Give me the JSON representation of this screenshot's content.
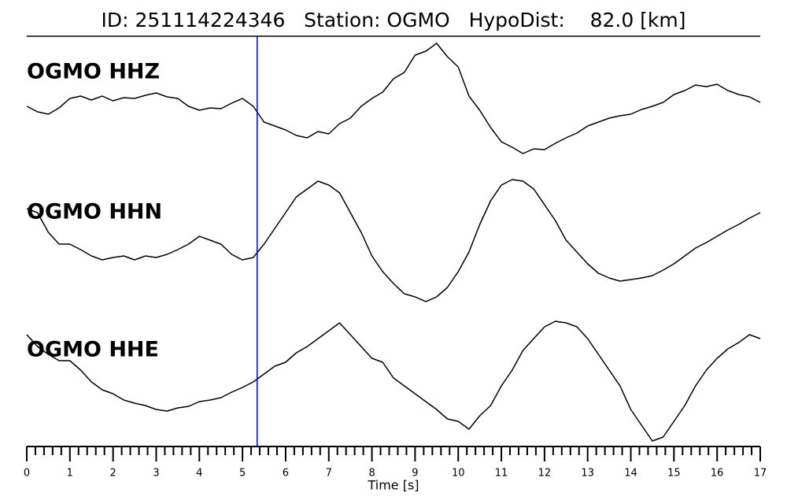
{
  "chart_data": {
    "type": "seismogram",
    "title": "ID: 251114224346   Station: OGMO   HypoDist:    82.0 [km]",
    "xlabel": "Time [s]",
    "xlim": [
      0,
      17
    ],
    "xticks": [
      0,
      1,
      2,
      3,
      4,
      5,
      6,
      7,
      8,
      9,
      10,
      11,
      12,
      13,
      14,
      15,
      16,
      17
    ],
    "xminorticks": [
      0.2,
      0.4,
      0.6,
      0.8,
      1.2,
      1.4,
      1.6,
      1.8,
      2.2,
      2.4,
      2.6,
      2.8,
      3.2,
      3.4,
      3.6,
      3.8,
      4.2,
      4.4,
      4.6,
      4.8,
      5.2,
      5.4,
      5.6,
      5.8,
      6.2,
      6.4,
      6.6,
      6.8,
      7.2,
      7.4,
      7.6,
      7.8,
      8.2,
      8.4,
      8.6,
      8.8,
      9.2,
      9.4,
      9.6,
      9.8,
      10.2,
      10.4,
      10.6,
      10.8,
      11.2,
      11.4,
      11.6,
      11.8,
      12.2,
      12.4,
      12.6,
      12.8,
      13.2,
      13.4,
      13.6,
      13.8,
      14.2,
      14.4,
      14.6,
      14.8,
      15.2,
      15.4,
      15.6,
      15.8,
      16.2,
      16.4,
      16.6,
      16.8
    ],
    "ylim": [
      -90,
      90
    ],
    "pick_x": 5.34,
    "pick_color": "#0000ff",
    "label_color": "#4c9a00",
    "x": [
      0,
      0.25,
      0.5,
      0.75,
      1,
      1.25,
      1.5,
      1.75,
      2,
      2.25,
      2.5,
      2.75,
      3,
      3.25,
      3.5,
      3.75,
      4,
      4.25,
      4.5,
      4.75,
      5,
      5.25,
      5.5,
      5.75,
      6,
      6.25,
      6.5,
      6.75,
      7,
      7.25,
      7.5,
      7.75,
      8,
      8.25,
      8.5,
      8.75,
      9,
      9.25,
      9.5,
      9.75,
      10,
      10.25,
      10.5,
      10.75,
      11,
      11.25,
      11.5,
      11.75,
      12,
      12.25,
      12.5,
      12.75,
      13,
      13.25,
      13.5,
      13.75,
      14,
      14.25,
      14.5,
      14.75,
      15,
      15.25,
      15.5,
      15.75,
      16,
      16.25,
      16.5,
      16.75,
      17
    ],
    "series": [
      {
        "name": "OGMO HHZ",
        "color": "#000000",
        "values": [
          -8,
          -15,
          -18,
          -10,
          2,
          5,
          0,
          5,
          -1,
          3,
          2,
          6,
          9,
          4,
          2,
          -8,
          -13,
          -10,
          -11,
          -4,
          2,
          -8,
          -28,
          -33,
          -38,
          -45,
          -48,
          -40,
          -43,
          -30,
          -23,
          -8,
          2,
          10,
          27,
          35,
          57,
          62,
          72,
          55,
          42,
          5,
          -13,
          -35,
          -53,
          -60,
          -68,
          -62,
          -63,
          -55,
          -48,
          -42,
          -33,
          -28,
          -23,
          -20,
          -18,
          -12,
          -8,
          -3,
          7,
          12,
          19,
          17,
          20,
          12,
          7,
          4,
          -3
        ]
      },
      {
        "name": "OGMO HHN",
        "color": "#000000",
        "values": [
          40,
          35,
          10,
          -5,
          -5,
          -12,
          -20,
          -25,
          -22,
          -20,
          -25,
          -20,
          -22,
          -18,
          -12,
          -5,
          5,
          0,
          -5,
          -18,
          -25,
          -22,
          -5,
          15,
          35,
          55,
          65,
          75,
          70,
          60,
          35,
          10,
          -20,
          -40,
          -55,
          -68,
          -72,
          -78,
          -72,
          -60,
          -40,
          -15,
          20,
          50,
          70,
          77,
          75,
          65,
          45,
          25,
          0,
          -15,
          -30,
          -42,
          -48,
          -52,
          -50,
          -48,
          -45,
          -38,
          -30,
          -20,
          -10,
          -3,
          5,
          13,
          20,
          28,
          35
        ]
      },
      {
        "name": "OGMO HHE",
        "color": "#000000",
        "values": [
          55,
          40,
          30,
          22,
          22,
          10,
          -5,
          -15,
          -20,
          -28,
          -32,
          -35,
          -40,
          -42,
          -38,
          -36,
          -30,
          -28,
          -25,
          -18,
          -12,
          -5,
          5,
          15,
          20,
          32,
          40,
          50,
          60,
          70,
          55,
          40,
          25,
          20,
          0,
          -10,
          -20,
          -30,
          -40,
          -52,
          -55,
          -65,
          -48,
          -35,
          -10,
          10,
          35,
          50,
          65,
          72,
          70,
          65,
          50,
          30,
          10,
          -10,
          -40,
          -60,
          -80,
          -75,
          -55,
          -35,
          -10,
          10,
          25,
          37,
          45,
          55,
          50
        ]
      }
    ]
  }
}
